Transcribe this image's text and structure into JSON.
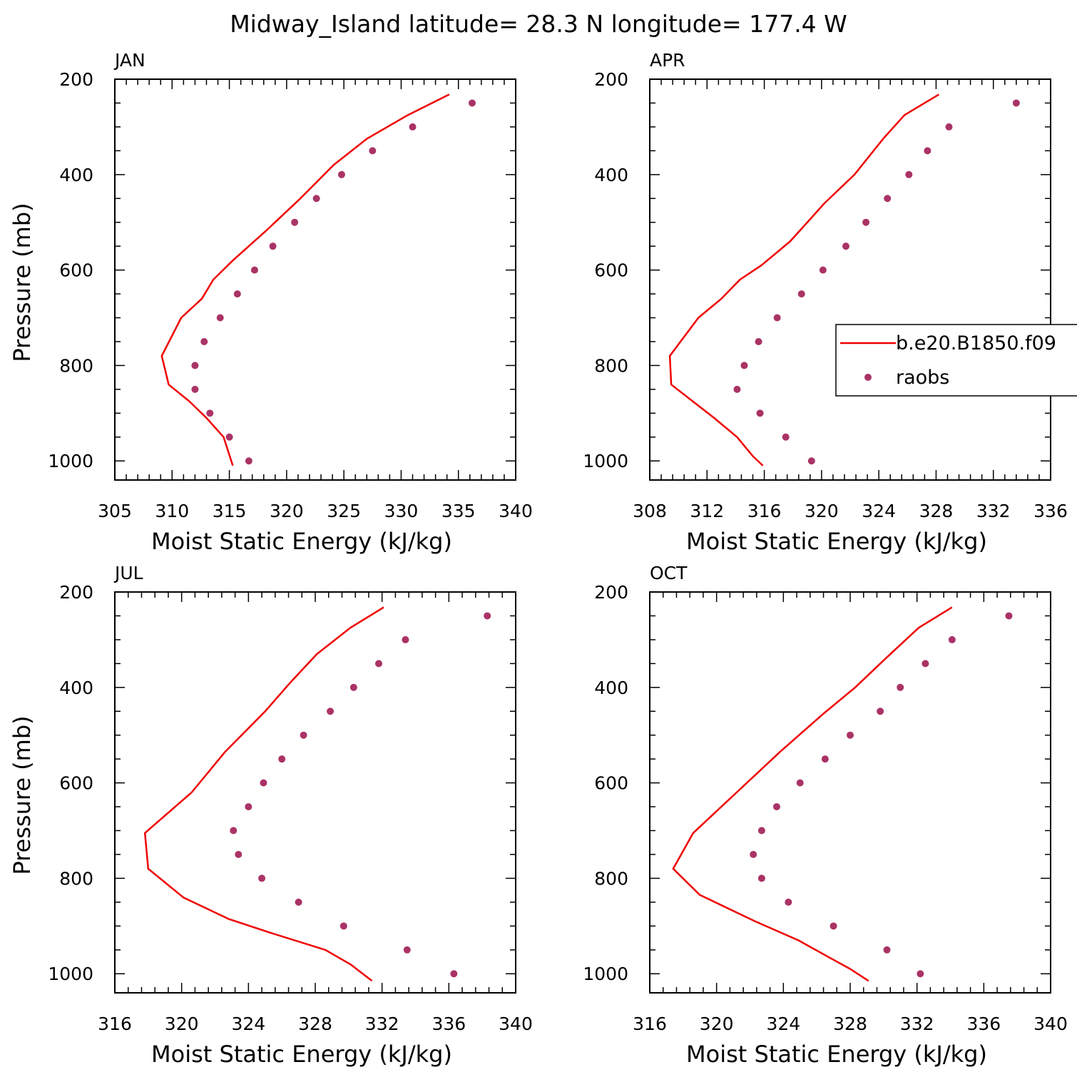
{
  "title": "Midway_Island  latitude= 28.3 N longitude= 177.4 W",
  "colors": {
    "model": "#ee0000",
    "obs": "#aa3366",
    "axis": "#000000"
  },
  "legend": {
    "model_label": "b.e20.B1850.f09",
    "obs_label": "raobs"
  },
  "chart_data": [
    {
      "type": "line",
      "panel": "JAN",
      "xlabel": "Moist Static Energy (kJ/kg)",
      "ylabel": "Pressure (mb)",
      "xlim": [
        305,
        340
      ],
      "ylim": [
        200,
        1040
      ],
      "y_reversed": true,
      "xticks": [
        305,
        310,
        315,
        320,
        325,
        330,
        335,
        340
      ],
      "yticks": [
        200,
        400,
        600,
        800,
        1000
      ],
      "series": [
        {
          "name": "b.e20.B1850.f09",
          "type": "line",
          "x": [
            334.2,
            330.6,
            327.0,
            324.1,
            321.2,
            318.1,
            315.3,
            313.6,
            312.6,
            310.8,
            309.1,
            309.7,
            311.5,
            313.0,
            314.5,
            315.3
          ],
          "y": [
            232,
            275,
            325,
            380,
            450,
            520,
            580,
            620,
            660,
            700,
            780,
            840,
            875,
            910,
            950,
            1010
          ]
        },
        {
          "name": "raobs",
          "type": "scatter",
          "x": [
            336.2,
            331.0,
            327.5,
            324.8,
            322.6,
            320.7,
            318.8,
            317.2,
            315.7,
            314.2,
            312.8,
            312.0,
            312.0,
            313.3,
            315.0,
            316.7
          ],
          "y": [
            250,
            300,
            350,
            400,
            450,
            500,
            550,
            600,
            650,
            700,
            750,
            800,
            850,
            900,
            950,
            1000
          ]
        }
      ]
    },
    {
      "type": "line",
      "panel": "APR",
      "xlabel": "Moist Static Energy (kJ/kg)",
      "ylabel": "",
      "xlim": [
        308,
        336
      ],
      "ylim": [
        200,
        1040
      ],
      "y_reversed": true,
      "xticks": [
        308,
        312,
        316,
        320,
        324,
        328,
        332,
        336
      ],
      "yticks": [
        200,
        400,
        600,
        800,
        1000
      ],
      "series": [
        {
          "name": "b.e20.B1850.f09",
          "type": "line",
          "x": [
            328.2,
            325.8,
            324.3,
            322.3,
            320.2,
            317.8,
            315.8,
            314.3,
            313.0,
            311.4,
            309.4,
            309.5,
            311.0,
            312.5,
            314.1,
            315.2,
            315.9
          ],
          "y": [
            232,
            275,
            325,
            400,
            460,
            540,
            590,
            620,
            660,
            700,
            780,
            840,
            875,
            910,
            950,
            990,
            1010
          ]
        },
        {
          "name": "raobs",
          "type": "scatter",
          "x": [
            333.6,
            328.9,
            327.4,
            326.1,
            324.6,
            323.1,
            321.7,
            320.1,
            318.6,
            316.9,
            315.6,
            314.6,
            314.1,
            315.7,
            317.5,
            319.3
          ],
          "y": [
            250,
            300,
            350,
            400,
            450,
            500,
            550,
            600,
            650,
            700,
            750,
            800,
            850,
            900,
            950,
            1000
          ]
        }
      ]
    },
    {
      "type": "line",
      "panel": "JUL",
      "xlabel": "Moist Static Energy (kJ/kg)",
      "ylabel": "Pressure (mb)",
      "xlim": [
        316,
        340
      ],
      "ylim": [
        200,
        1040
      ],
      "y_reversed": true,
      "xticks": [
        316,
        320,
        324,
        328,
        332,
        336,
        340
      ],
      "yticks": [
        200,
        400,
        600,
        800,
        1000
      ],
      "series": [
        {
          "name": "b.e20.B1850.f09",
          "type": "line",
          "x": [
            332.1,
            330.1,
            328.1,
            326.5,
            325.0,
            322.6,
            320.6,
            317.8,
            318.0,
            320.1,
            322.8,
            325.4,
            328.6,
            330.1,
            331.4
          ],
          "y": [
            232,
            275,
            330,
            390,
            450,
            535,
            620,
            705,
            780,
            840,
            885,
            915,
            950,
            980,
            1015
          ]
        },
        {
          "name": "raobs",
          "type": "scatter",
          "x": [
            338.3,
            333.4,
            331.8,
            330.3,
            328.9,
            327.3,
            326.0,
            324.9,
            324.0,
            323.1,
            323.4,
            324.8,
            327.0,
            329.7,
            333.5,
            336.3
          ],
          "y": [
            250,
            300,
            350,
            400,
            450,
            500,
            550,
            600,
            650,
            700,
            750,
            800,
            850,
            900,
            950,
            1000
          ]
        }
      ]
    },
    {
      "type": "line",
      "panel": "OCT",
      "xlabel": "Moist Static Energy (kJ/kg)",
      "ylabel": "",
      "xlim": [
        316,
        340
      ],
      "ylim": [
        200,
        1040
      ],
      "y_reversed": true,
      "xticks": [
        316,
        320,
        324,
        328,
        332,
        336,
        340
      ],
      "yticks": [
        200,
        400,
        600,
        800,
        1000
      ],
      "series": [
        {
          "name": "b.e20.B1850.f09",
          "type": "line",
          "x": [
            334.1,
            332.1,
            330.1,
            328.3,
            326.4,
            323.8,
            321.2,
            318.6,
            317.4,
            319.0,
            322.3,
            324.9,
            326.7,
            328.0,
            329.1
          ],
          "y": [
            232,
            275,
            340,
            400,
            455,
            535,
            620,
            705,
            780,
            835,
            890,
            930,
            965,
            990,
            1015
          ]
        },
        {
          "name": "raobs",
          "type": "scatter",
          "x": [
            337.5,
            334.1,
            332.5,
            331.0,
            329.8,
            328.0,
            326.5,
            325.0,
            323.6,
            322.7,
            322.2,
            322.7,
            324.3,
            327.0,
            330.2,
            332.2
          ],
          "y": [
            250,
            300,
            350,
            400,
            450,
            500,
            550,
            600,
            650,
            700,
            750,
            800,
            850,
            900,
            950,
            1000
          ]
        }
      ]
    }
  ]
}
